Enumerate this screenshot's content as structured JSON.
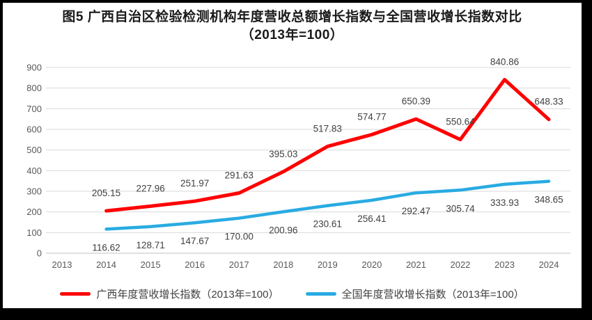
{
  "chart_data": {
    "type": "line",
    "title": "图5  广西自治区检验检测机构年度营收总额增长指数与全国营收增长指数对比（2013年=100）",
    "categories": [
      "2013",
      "2014",
      "2015",
      "2016",
      "2017",
      "2018",
      "2019",
      "2020",
      "2021",
      "2022",
      "2023",
      "2024"
    ],
    "series": [
      {
        "id": "guangxi",
        "name": "广西年度营收增长指数（2013年=100）",
        "color": "#FF0000",
        "stroke_width": 5,
        "label_position": "above",
        "values": [
          null,
          "205.15",
          "227.96",
          "251.97",
          "291.63",
          "395.03",
          "517.83",
          "574.77",
          "650.39",
          "550.64",
          "840.86",
          "648.33"
        ]
      },
      {
        "id": "national",
        "name": "全国年度营收增长指数（2013年=100）",
        "color": "#29ABE2",
        "stroke_width": 4.5,
        "label_position": "below",
        "values": [
          null,
          "116.62",
          "128.71",
          "147.67",
          "170.00",
          "200.96",
          "230.61",
          "256.41",
          "292.47",
          "305.74",
          "333.93",
          "348.65"
        ]
      }
    ],
    "ylim": [
      0,
      900
    ],
    "ytick_step": 100,
    "grid": true,
    "legend_position": "bottom",
    "colors": {
      "gridline": "#D9D9D9",
      "axis_line": "#BFBFBF",
      "tick_text": "#595959",
      "data_label_text": "#404040",
      "frame_border": "#000000"
    }
  }
}
